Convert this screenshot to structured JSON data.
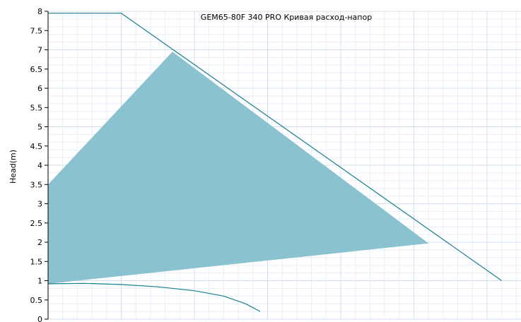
{
  "chart_data": {
    "type": "line",
    "title": "GEM65-80F 340 PRO Кривая расход-напор",
    "ylabel": "Head(m)",
    "xlabel": "",
    "ylim": [
      0,
      8
    ],
    "yticks": [
      "0",
      "0.5",
      "1",
      "1.5",
      "2",
      "2.5",
      "3",
      "3.5",
      "4",
      "4.5",
      "5",
      "5.5",
      "6",
      "6.5",
      "7",
      "7.5",
      "8"
    ],
    "grid": true,
    "colors": {
      "line": "#1a7f8e",
      "fill": "#8ac2d0",
      "grid_minor": "#e6eef7",
      "grid_major": "#d3dfee",
      "axis": "#000000"
    },
    "series": [
      {
        "role": "max-curve",
        "points": [
          [
            0,
            7.95
          ],
          [
            1,
            7.95
          ],
          [
            6.2,
            1.0
          ]
        ]
      },
      {
        "role": "min-curve",
        "points": [
          [
            0,
            0.92
          ],
          [
            0.5,
            0.93
          ],
          [
            1,
            0.9
          ],
          [
            1.5,
            0.84
          ],
          [
            2,
            0.74
          ],
          [
            2.4,
            0.6
          ],
          [
            2.7,
            0.4
          ],
          [
            2.9,
            0.2
          ]
        ]
      }
    ],
    "operating_area": [
      [
        0,
        3.5
      ],
      [
        1.7,
        6.95
      ],
      [
        5.2,
        1.97
      ],
      [
        0,
        0.92
      ]
    ]
  }
}
